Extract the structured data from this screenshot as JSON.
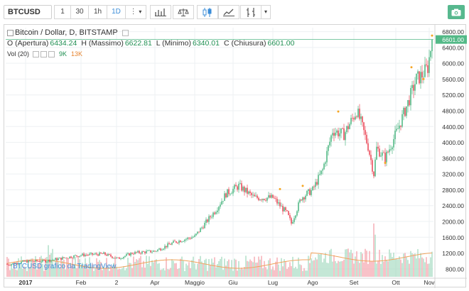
{
  "toolbar": {
    "symbol": "BTCUSD",
    "intervals": [
      "1",
      "30",
      "1h",
      "1D"
    ],
    "active_interval": "1D",
    "more_label": "⋮",
    "dropdown_caret": "▾"
  },
  "legend": {
    "title": "Bitcoin / Dollar, D, BITSTAMP",
    "open_label": "O (Apertura)",
    "open_value": "6434.24",
    "high_label": "H (Massimo)",
    "high_value": "6622.81",
    "low_label": "L (Minimo)",
    "low_value": "6340.01",
    "close_label": "C (Chiusura)",
    "close_value": "6601.00",
    "volume_label": "Vol (20)",
    "volume_value": "9K",
    "volume_ma_value": "13K"
  },
  "watermark": "BTCUSD grafico da TradingView",
  "price_tag": "6601.00",
  "colors": {
    "up": "#53b987",
    "down": "#eb4d5c",
    "accent": "#3b8dd8",
    "camera": "#57b88e",
    "volume_ma": "#f0a35c"
  },
  "icons": [
    "bars-icon",
    "scales-icon",
    "candles-icon",
    "line-icon",
    "indicators-icon",
    "camera-icon",
    "settings-icon",
    "eye-icon"
  ],
  "chart_data": {
    "type": "candlestick",
    "title": "Bitcoin / Dollar, D, BITSTAMP",
    "x_tick_labels": [
      "2017",
      "Feb",
      "2",
      "Apr",
      "Maggio",
      "Giu",
      "Lug",
      "Ago",
      "Set",
      "Ott",
      "Nov"
    ],
    "y_tick_labels": [
      "800.00",
      "1200.00",
      "1600.00",
      "2000.00",
      "2400.00",
      "2800.00",
      "3200.00",
      "3600.00",
      "4000.00",
      "4400.00",
      "4800.00",
      "5200.00",
      "5600.00",
      "6000.00",
      "6400.00",
      "6800.00"
    ],
    "ylim": [
      600,
      6900
    ],
    "last_close": 6601.0,
    "series": [
      {
        "name": "BTCUSD",
        "x": [
          "2017-01",
          "2017-02",
          "2017-03",
          "2017-04",
          "2017-05",
          "2017-06",
          "2017-07",
          "2017-08",
          "2017-09",
          "2017-10",
          "2017-11"
        ],
        "close": [
          970,
          1190,
          1080,
          1350,
          2300,
          2500,
          2870,
          4700,
          4340,
          6450,
          6601
        ]
      }
    ]
  }
}
